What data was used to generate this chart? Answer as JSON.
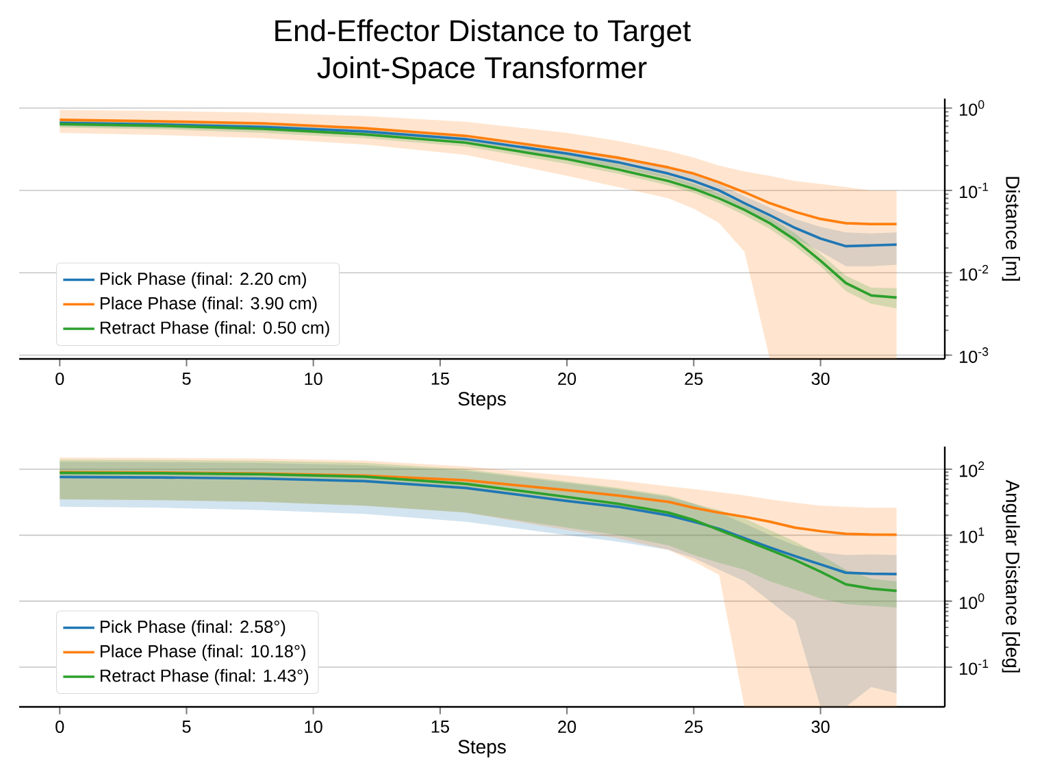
{
  "chart_data": [
    {
      "type": "line",
      "title": "End-Effector Distance to Target",
      "subtitle": "Joint-Space Transformer",
      "xlabel": "Steps",
      "ylabel": "Distance [m]",
      "log": "y",
      "grid": "y",
      "legend": "bottom left",
      "xlim": [
        -1.6,
        34.9
      ],
      "xticks": [
        0,
        5,
        10,
        15,
        20,
        25,
        30
      ],
      "ylim": [
        0.0009,
        1.3
      ],
      "yticks": [
        {
          "value": 0.001,
          "label": "10$^{-3}$"
        },
        {
          "value": 0.01,
          "label": "10$^{-2}$"
        },
        {
          "value": 0.1,
          "label": "10$^{-1}$"
        },
        {
          "value": 1,
          "label": "10$^{0}$"
        }
      ],
      "x": [
        0,
        4,
        8,
        12,
        16,
        20,
        22,
        24,
        25,
        26,
        27,
        28,
        29,
        30,
        31,
        32,
        33
      ],
      "series": [
        {
          "name": "Pick Phase (final: 2.20 cm)",
          "color": "#1f77b4",
          "values": [
            0.66,
            0.63,
            0.59,
            0.52,
            0.42,
            0.28,
            0.22,
            0.16,
            0.13,
            0.1,
            0.07,
            0.05,
            0.035,
            0.026,
            0.021,
            0.0215,
            0.022
          ],
          "lower": [
            0.6,
            0.57,
            0.53,
            0.46,
            0.37,
            0.24,
            0.19,
            0.14,
            0.11,
            0.085,
            0.058,
            0.04,
            0.026,
            0.018,
            0.012,
            0.012,
            0.0125
          ],
          "upper": [
            0.73,
            0.7,
            0.66,
            0.58,
            0.47,
            0.32,
            0.26,
            0.19,
            0.155,
            0.12,
            0.085,
            0.062,
            0.045,
            0.036,
            0.031,
            0.03,
            0.031
          ]
        },
        {
          "name": "Place Phase (final: 3.90 cm)",
          "color": "#ff7f0e",
          "values": [
            0.72,
            0.69,
            0.65,
            0.57,
            0.46,
            0.31,
            0.25,
            0.19,
            0.16,
            0.125,
            0.095,
            0.07,
            0.055,
            0.045,
            0.04,
            0.039,
            0.039
          ],
          "lower": [
            0.5,
            0.47,
            0.43,
            0.36,
            0.27,
            0.15,
            0.11,
            0.08,
            0.06,
            0.04,
            0.018,
            0.0009,
            0.0009,
            0.0009,
            0.0009,
            0.0009,
            0.0009
          ],
          "upper": [
            0.95,
            0.92,
            0.88,
            0.8,
            0.68,
            0.5,
            0.4,
            0.3,
            0.25,
            0.2,
            0.17,
            0.15,
            0.13,
            0.12,
            0.11,
            0.1,
            0.1
          ]
        },
        {
          "name": "Retract Phase (final: 0.50 cm)",
          "color": "#2ca02c",
          "values": [
            0.64,
            0.61,
            0.56,
            0.48,
            0.38,
            0.24,
            0.18,
            0.13,
            0.105,
            0.08,
            0.058,
            0.04,
            0.025,
            0.014,
            0.0075,
            0.0053,
            0.005
          ],
          "lower": [
            0.58,
            0.55,
            0.5,
            0.43,
            0.34,
            0.21,
            0.16,
            0.115,
            0.093,
            0.07,
            0.05,
            0.034,
            0.021,
            0.012,
            0.006,
            0.0042,
            0.0037
          ],
          "upper": [
            0.7,
            0.67,
            0.62,
            0.54,
            0.43,
            0.27,
            0.21,
            0.15,
            0.12,
            0.092,
            0.067,
            0.047,
            0.03,
            0.017,
            0.0092,
            0.0066,
            0.0065
          ]
        }
      ]
    },
    {
      "type": "line",
      "xlabel": "Steps",
      "ylabel": "Angular Distance [deg]",
      "log": "y",
      "grid": "y",
      "legend": "bottom left",
      "xlim": [
        -1.6,
        34.9
      ],
      "xticks": [
        0,
        5,
        10,
        15,
        20,
        25,
        30
      ],
      "ylim": [
        0.025,
        220
      ],
      "yticks": [
        {
          "value": 0.1,
          "label": "10$^{-1}$"
        },
        {
          "value": 1,
          "label": "10$^{0}$"
        },
        {
          "value": 10,
          "label": "10$^{1}$"
        },
        {
          "value": 100,
          "label": "10$^{2}$"
        }
      ],
      "x": [
        0,
        4,
        8,
        12,
        16,
        20,
        22,
        24,
        25,
        26,
        27,
        28,
        29,
        30,
        31,
        32,
        33
      ],
      "series": [
        {
          "name": "Pick Phase (final: 2.58°)",
          "color": "#1f77b4",
          "values": [
            76,
            75,
            72,
            66,
            52,
            33,
            27,
            20,
            16,
            12.5,
            9,
            6.5,
            4.8,
            3.6,
            2.7,
            2.6,
            2.58
          ],
          "lower": [
            27,
            26,
            24,
            21,
            16,
            10,
            8,
            6,
            4.5,
            3,
            2,
            1,
            0.5,
            0.025,
            0.025,
            0.05,
            0.04
          ],
          "upper": [
            130,
            128,
            124,
            115,
            95,
            62,
            50,
            38,
            30,
            22,
            15,
            10,
            7,
            5.5,
            5,
            5.1,
            5
          ]
        },
        {
          "name": "Place Phase (final: 10.18°)",
          "color": "#ff7f0e",
          "values": [
            90,
            89,
            86,
            80,
            68,
            48,
            40,
            32,
            26,
            22,
            19,
            16,
            13,
            11.5,
            10.5,
            10.2,
            10.18
          ],
          "lower": [
            35,
            34,
            32,
            28,
            22,
            12,
            9,
            6,
            4,
            2.5,
            0.025,
            0.025,
            0.025,
            0.025,
            0.025,
            0.025,
            0.025
          ],
          "upper": [
            150,
            148,
            145,
            135,
            110,
            80,
            68,
            55,
            50,
            45,
            40,
            35,
            31,
            28,
            27,
            26,
            26
          ]
        },
        {
          "name": "Retract Phase (final: 1.43°)",
          "color": "#2ca02c",
          "values": [
            88,
            87,
            84,
            77,
            60,
            38,
            30,
            22,
            17,
            12,
            8.5,
            6,
            4.2,
            2.8,
            1.8,
            1.55,
            1.43
          ],
          "lower": [
            35,
            34,
            32,
            28,
            22,
            13,
            10,
            7,
            5,
            3.8,
            3,
            2,
            1.5,
            1.1,
            0.9,
            0.85,
            0.8
          ],
          "upper": [
            140,
            138,
            134,
            125,
            100,
            65,
            52,
            40,
            30,
            24,
            18,
            12,
            8,
            5,
            3,
            2.2,
            2
          ]
        }
      ]
    }
  ]
}
